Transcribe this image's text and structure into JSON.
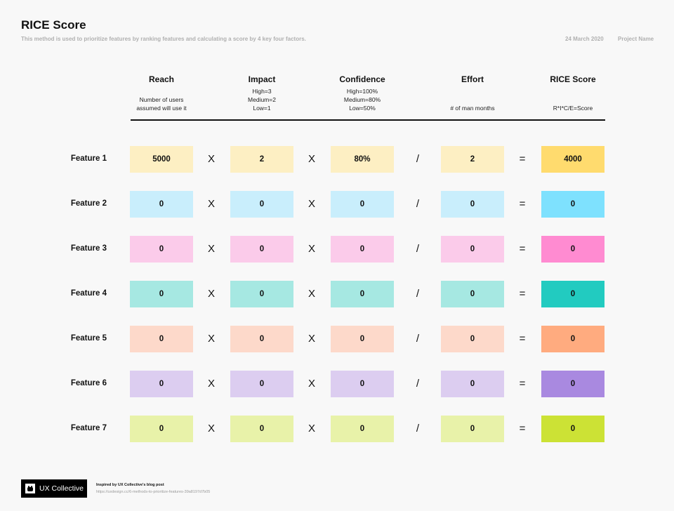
{
  "header": {
    "title": "RICE Score",
    "subtitle": "This method is used to prioritize features by ranking features and calculating a score by 4 key four factors.",
    "date": "24 March 2020",
    "project": "Project Name"
  },
  "columns": [
    {
      "title": "Reach",
      "desc": [
        "Number of users",
        "assumed will use it"
      ]
    },
    {
      "title": "Impact",
      "desc": [
        "High=3",
        "Medium=2",
        "Low=1"
      ]
    },
    {
      "title": "Confidence",
      "desc": [
        "High=100%",
        "Medium=80%",
        "Low=50%"
      ]
    },
    {
      "title": "Effort",
      "desc": [
        "# of man months"
      ]
    },
    {
      "title": "RICE Score",
      "desc": [
        "R*I*C/E=Score"
      ]
    }
  ],
  "operators": [
    "X",
    "X",
    "/",
    "="
  ],
  "rows": [
    {
      "label": "Feature 1",
      "values": [
        "5000",
        "2",
        "80%",
        "2",
        "4000"
      ],
      "light": "#fdefc3",
      "strong": "#ffdb6e"
    },
    {
      "label": "Feature 2",
      "values": [
        "0",
        "0",
        "0",
        "0",
        "0"
      ],
      "light": "#c9eefc",
      "strong": "#7ee1fe"
    },
    {
      "label": "Feature 3",
      "values": [
        "0",
        "0",
        "0",
        "0",
        "0"
      ],
      "light": "#fbcbea",
      "strong": "#ff8bd1"
    },
    {
      "label": "Feature 4",
      "values": [
        "0",
        "0",
        "0",
        "0",
        "0"
      ],
      "light": "#a6e8e2",
      "strong": "#22cbc0"
    },
    {
      "label": "Feature 5",
      "values": [
        "0",
        "0",
        "0",
        "0",
        "0"
      ],
      "light": "#fdd9ca",
      "strong": "#ffab7f"
    },
    {
      "label": "Feature 6",
      "values": [
        "0",
        "0",
        "0",
        "0",
        "0"
      ],
      "light": "#dccdf0",
      "strong": "#a989e0"
    },
    {
      "label": "Feature 7",
      "values": [
        "0",
        "0",
        "0",
        "0",
        "0"
      ],
      "light": "#e8f2a9",
      "strong": "#cce235"
    }
  ],
  "footer": {
    "logo_text": "UX Collective",
    "logo_icon": "polar-bear-icon",
    "credit_line": "Inspired by UX Collective's blog post",
    "credit_url": "https://uxdesign.cc/6-methods-to-prioritize-features-39a8197d7b05"
  }
}
